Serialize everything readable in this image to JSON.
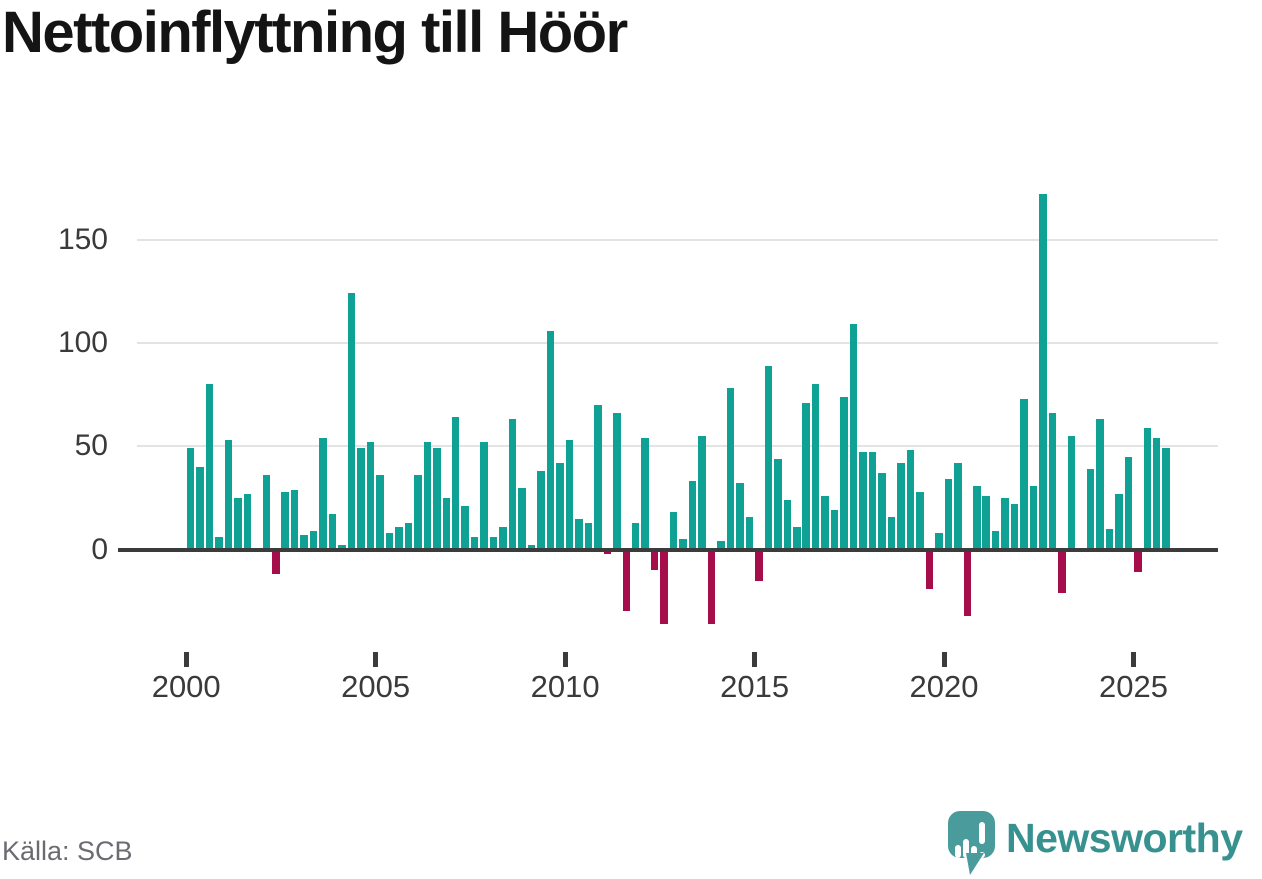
{
  "title": "Nettoinflyttning till Höör",
  "footer": {
    "source": "Källa: SCB",
    "brand": "Newsworthy"
  },
  "colors": {
    "positive": "#0fa294",
    "negative": "#a60d4b",
    "axis": "#3b3b3b",
    "grid": "#e3e3e3",
    "tick_text": "#3a3a3a",
    "brand_text": "#37918f",
    "brand_bubble": "#4a9b9c"
  },
  "chart_data": {
    "type": "bar",
    "title": "Nettoinflyttning till Höör",
    "frequency": "quarterly",
    "period_start": "2000 Q1",
    "period_end": "2025 Q4",
    "xlabel": "",
    "ylabel": "",
    "grid": true,
    "ylim": [
      -40,
      178
    ],
    "y_ticks": [
      0,
      50,
      100,
      150
    ],
    "x_tick_labels": [
      "2000",
      "2005",
      "2010",
      "2015",
      "2020",
      "2025"
    ],
    "series": [
      {
        "name": "Nettoinflyttning till Höör (kvartal)",
        "values": [
          49,
          40,
          80,
          6,
          53,
          25,
          27,
          0,
          36,
          -12,
          28,
          29,
          7,
          9,
          54,
          17,
          2,
          124,
          49,
          52,
          36,
          8,
          11,
          13,
          36,
          52,
          49,
          25,
          64,
          21,
          6,
          52,
          6,
          11,
          63,
          30,
          2,
          38,
          106,
          42,
          53,
          15,
          13,
          70,
          -2,
          66,
          -30,
          13,
          54,
          -10,
          -36,
          18,
          5,
          33,
          55,
          -36,
          4,
          78,
          32,
          16,
          -15,
          89,
          44,
          24,
          11,
          71,
          80,
          26,
          19,
          74,
          109,
          47,
          47,
          37,
          16,
          42,
          48,
          28,
          -19,
          8,
          34,
          42,
          -32,
          31,
          26,
          9,
          25,
          22,
          73,
          31,
          172,
          66,
          -21,
          55,
          0,
          39,
          63,
          10,
          27,
          45,
          -11,
          59,
          54,
          49
        ]
      }
    ]
  }
}
